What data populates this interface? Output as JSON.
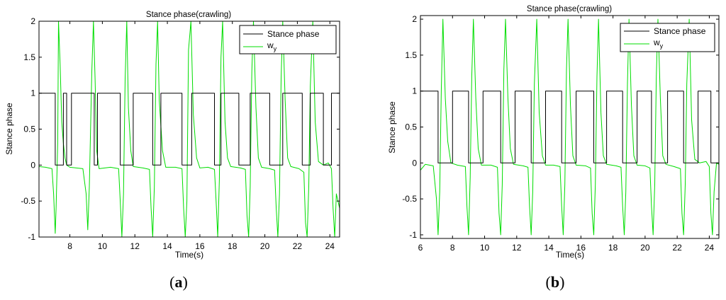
{
  "chart_data": [
    {
      "id": "a",
      "type": "line",
      "title": "Stance phase(crawling)",
      "xlabel": "Time(s)",
      "ylabel": "Stance phase",
      "caption": "a",
      "xlim": [
        6.1,
        24.6
      ],
      "ylim": [
        -1,
        2
      ],
      "xticks": [
        "8",
        "10",
        "12",
        "14",
        "16",
        "18",
        "20",
        "22",
        "24"
      ],
      "yticks": [
        "-1",
        "-0.5",
        "0",
        "0.5",
        "1",
        "1.5",
        "2"
      ],
      "grid": false,
      "legend_position": "top-right",
      "series": [
        {
          "name": "Stance phase",
          "color": "#000000",
          "steps": [
            [
              6.1,
              1
            ],
            [
              7.1,
              0
            ],
            [
              7.6,
              1
            ],
            [
              7.8,
              0
            ],
            [
              8.1,
              1
            ],
            [
              9.5,
              0
            ],
            [
              9.7,
              1
            ],
            [
              11.1,
              0
            ],
            [
              11.9,
              1
            ],
            [
              13.1,
              0
            ],
            [
              13.6,
              1
            ],
            [
              14.9,
              0
            ],
            [
              15.5,
              1
            ],
            [
              16.9,
              0
            ],
            [
              17.3,
              1
            ],
            [
              18.4,
              0
            ],
            [
              19.1,
              1
            ],
            [
              20.3,
              0
            ],
            [
              21.1,
              1
            ],
            [
              22.3,
              0
            ],
            [
              22.8,
              1
            ],
            [
              23.6,
              0
            ],
            [
              24.1,
              1
            ],
            [
              24.6,
              1
            ]
          ]
        },
        {
          "name": "w_y",
          "name_base": "w",
          "name_sub": "y",
          "color": "#00dd00",
          "points": [
            [
              6.1,
              -0.02
            ],
            [
              6.5,
              -0.03
            ],
            [
              6.9,
              -0.05
            ],
            [
              7.0,
              -0.4
            ],
            [
              7.1,
              -0.95
            ],
            [
              7.15,
              -0.6
            ],
            [
              7.25,
              0.3
            ],
            [
              7.3,
              2.0
            ],
            [
              7.4,
              1.4
            ],
            [
              7.5,
              0.6
            ],
            [
              7.6,
              0.3
            ],
            [
              7.7,
              0.1
            ],
            [
              7.8,
              0.0
            ],
            [
              8.0,
              -0.03
            ],
            [
              8.4,
              -0.04
            ],
            [
              8.8,
              -0.05
            ],
            [
              9.0,
              -0.4
            ],
            [
              9.1,
              -0.9
            ],
            [
              9.2,
              -0.3
            ],
            [
              9.35,
              1.3
            ],
            [
              9.45,
              2.0
            ],
            [
              9.55,
              1.2
            ],
            [
              9.65,
              0.2
            ],
            [
              9.8,
              -0.05
            ],
            [
              10.5,
              -0.03
            ],
            [
              11.0,
              -0.05
            ],
            [
              11.1,
              -0.5
            ],
            [
              11.2,
              -1.0
            ],
            [
              11.3,
              -0.4
            ],
            [
              11.4,
              1.2
            ],
            [
              11.5,
              2.0
            ],
            [
              11.6,
              0.8
            ],
            [
              11.75,
              0.2
            ],
            [
              11.9,
              -0.02
            ],
            [
              12.5,
              -0.04
            ],
            [
              12.9,
              -0.06
            ],
            [
              13.0,
              -0.6
            ],
            [
              13.1,
              -1.0
            ],
            [
              13.2,
              -0.3
            ],
            [
              13.3,
              1.4
            ],
            [
              13.4,
              2.0
            ],
            [
              13.5,
              0.9
            ],
            [
              13.7,
              0.2
            ],
            [
              13.9,
              -0.03
            ],
            [
              14.5,
              -0.03
            ],
            [
              14.9,
              -0.05
            ],
            [
              15.0,
              -0.6
            ],
            [
              15.1,
              -1.0
            ],
            [
              15.2,
              -0.5
            ],
            [
              15.3,
              1.6
            ],
            [
              15.45,
              2.0
            ],
            [
              15.6,
              0.7
            ],
            [
              15.8,
              0.1
            ],
            [
              16.0,
              -0.04
            ],
            [
              16.5,
              -0.03
            ],
            [
              16.9,
              -0.06
            ],
            [
              17.0,
              -0.5
            ],
            [
              17.1,
              -1.0
            ],
            [
              17.2,
              -0.2
            ],
            [
              17.3,
              1.5
            ],
            [
              17.4,
              2.0
            ],
            [
              17.55,
              0.6
            ],
            [
              17.7,
              0.1
            ],
            [
              17.9,
              -0.02
            ],
            [
              18.5,
              -0.04
            ],
            [
              18.8,
              -0.06
            ],
            [
              18.9,
              -0.7
            ],
            [
              19.0,
              -1.0
            ],
            [
              19.1,
              -0.3
            ],
            [
              19.2,
              1.3
            ],
            [
              19.3,
              2.0
            ],
            [
              19.45,
              0.8
            ],
            [
              19.6,
              0.1
            ],
            [
              19.8,
              -0.03
            ],
            [
              20.3,
              -0.05
            ],
            [
              20.6,
              -0.07
            ],
            [
              20.7,
              -0.6
            ],
            [
              20.8,
              -1.0
            ],
            [
              20.9,
              -0.4
            ],
            [
              21.0,
              1.2
            ],
            [
              21.1,
              2.0
            ],
            [
              21.25,
              0.9
            ],
            [
              21.4,
              0.1
            ],
            [
              21.6,
              -0.02
            ],
            [
              22.1,
              -0.05
            ],
            [
              22.4,
              -0.1
            ],
            [
              22.5,
              -0.8
            ],
            [
              22.6,
              -1.0
            ],
            [
              22.7,
              -0.3
            ],
            [
              22.8,
              1.1
            ],
            [
              22.95,
              2.0
            ],
            [
              23.1,
              0.6
            ],
            [
              23.3,
              0.05
            ],
            [
              23.6,
              0.0
            ],
            [
              23.9,
              0.03
            ],
            [
              24.1,
              -0.05
            ],
            [
              24.2,
              -0.6
            ],
            [
              24.3,
              -1.0
            ],
            [
              24.4,
              -0.4
            ],
            [
              24.6,
              -0.6
            ]
          ]
        }
      ]
    },
    {
      "id": "b",
      "type": "line",
      "title": "Stance phase(crawling)",
      "xlabel": "Time(s)",
      "ylabel": "Stance phase",
      "caption": "b",
      "xlim": [
        6,
        24.6
      ],
      "ylim": [
        -1.05,
        2.05
      ],
      "xticks": [
        "6",
        "8",
        "10",
        "12",
        "14",
        "16",
        "18",
        "20",
        "22",
        "24"
      ],
      "yticks": [
        "-1",
        "-0.5",
        "0",
        "0.5",
        "1",
        "1.5",
        "2"
      ],
      "grid": false,
      "legend_position": "top-right",
      "series": [
        {
          "name": "Stance phase",
          "color": "#000000",
          "steps": [
            [
              6.0,
              1
            ],
            [
              7.1,
              0
            ],
            [
              8.0,
              1
            ],
            [
              9.0,
              0
            ],
            [
              9.9,
              1
            ],
            [
              11.0,
              0
            ],
            [
              11.9,
              1
            ],
            [
              12.9,
              0
            ],
            [
              13.8,
              1
            ],
            [
              14.8,
              0
            ],
            [
              15.7,
              1
            ],
            [
              16.8,
              0
            ],
            [
              17.6,
              1
            ],
            [
              18.6,
              0
            ],
            [
              19.5,
              1
            ],
            [
              20.4,
              0
            ],
            [
              21.4,
              1
            ],
            [
              22.4,
              0
            ],
            [
              23.3,
              1
            ],
            [
              24.1,
              0
            ],
            [
              24.6,
              0
            ]
          ]
        },
        {
          "name": "w_y",
          "name_base": "w",
          "name_sub": "y",
          "color": "#00dd00",
          "points": [
            [
              6.0,
              -0.1
            ],
            [
              6.3,
              -0.02
            ],
            [
              6.8,
              -0.04
            ],
            [
              7.0,
              -0.5
            ],
            [
              7.1,
              -1.0
            ],
            [
              7.2,
              -0.4
            ],
            [
              7.3,
              1.0
            ],
            [
              7.4,
              2.0
            ],
            [
              7.55,
              0.9
            ],
            [
              7.7,
              0.3
            ],
            [
              7.9,
              0.0
            ],
            [
              8.3,
              -0.03
            ],
            [
              8.8,
              -0.05
            ],
            [
              8.9,
              -0.6
            ],
            [
              9.0,
              -1.0
            ],
            [
              9.1,
              -0.2
            ],
            [
              9.2,
              1.2
            ],
            [
              9.3,
              2.0
            ],
            [
              9.45,
              0.9
            ],
            [
              9.6,
              0.2
            ],
            [
              9.8,
              -0.03
            ],
            [
              10.4,
              -0.03
            ],
            [
              10.8,
              -0.06
            ],
            [
              10.9,
              -0.7
            ],
            [
              11.0,
              -1.0
            ],
            [
              11.1,
              -0.3
            ],
            [
              11.2,
              1.3
            ],
            [
              11.3,
              2.0
            ],
            [
              11.45,
              0.9
            ],
            [
              11.6,
              0.2
            ],
            [
              11.8,
              -0.02
            ],
            [
              12.4,
              -0.04
            ],
            [
              12.7,
              -0.06
            ],
            [
              12.8,
              -0.6
            ],
            [
              12.9,
              -1.0
            ],
            [
              13.0,
              -0.4
            ],
            [
              13.1,
              1.1
            ],
            [
              13.25,
              2.0
            ],
            [
              13.4,
              0.7
            ],
            [
              13.6,
              0.1
            ],
            [
              13.8,
              -0.03
            ],
            [
              14.3,
              -0.03
            ],
            [
              14.7,
              -0.05
            ],
            [
              14.8,
              -0.6
            ],
            [
              14.9,
              -1.0
            ],
            [
              15.0,
              -0.3
            ],
            [
              15.1,
              1.3
            ],
            [
              15.2,
              2.0
            ],
            [
              15.35,
              0.8
            ],
            [
              15.5,
              0.1
            ],
            [
              15.7,
              -0.03
            ],
            [
              16.3,
              -0.04
            ],
            [
              16.6,
              -0.07
            ],
            [
              16.7,
              -0.7
            ],
            [
              16.8,
              -1.0
            ],
            [
              16.9,
              -0.3
            ],
            [
              17.0,
              1.2
            ],
            [
              17.1,
              2.0
            ],
            [
              17.25,
              0.7
            ],
            [
              17.4,
              0.1
            ],
            [
              17.6,
              -0.02
            ],
            [
              18.2,
              -0.04
            ],
            [
              18.5,
              -0.06
            ],
            [
              18.6,
              -0.6
            ],
            [
              18.7,
              -1.0
            ],
            [
              18.8,
              -0.4
            ],
            [
              18.9,
              1.1
            ],
            [
              19.0,
              2.0
            ],
            [
              19.15,
              0.8
            ],
            [
              19.3,
              0.1
            ],
            [
              19.5,
              -0.03
            ],
            [
              20.0,
              -0.04
            ],
            [
              20.3,
              -0.07
            ],
            [
              20.4,
              -0.6
            ],
            [
              20.5,
              -1.0
            ],
            [
              20.6,
              -0.3
            ],
            [
              20.7,
              1.2
            ],
            [
              20.8,
              2.0
            ],
            [
              20.95,
              0.9
            ],
            [
              21.1,
              0.1
            ],
            [
              21.3,
              -0.02
            ],
            [
              21.8,
              -0.05
            ],
            [
              22.2,
              -0.08
            ],
            [
              22.3,
              -0.7
            ],
            [
              22.4,
              -1.0
            ],
            [
              22.5,
              -0.3
            ],
            [
              22.6,
              1.1
            ],
            [
              22.75,
              2.0
            ],
            [
              22.9,
              0.6
            ],
            [
              23.1,
              0.05
            ],
            [
              23.4,
              0.0
            ],
            [
              23.8,
              0.02
            ],
            [
              24.0,
              -0.05
            ],
            [
              24.1,
              -0.7
            ],
            [
              24.2,
              -1.0
            ],
            [
              24.3,
              -0.4
            ],
            [
              24.45,
              0.0
            ],
            [
              24.6,
              -0.02
            ]
          ]
        }
      ]
    }
  ]
}
